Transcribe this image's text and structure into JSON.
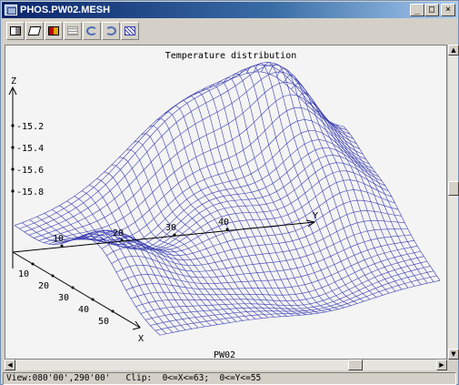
{
  "window": {
    "title": "PHOS.PW02.MESH"
  },
  "window_buttons": {
    "minimize": "_",
    "maximize": "□",
    "close": "×"
  },
  "toolbar": {
    "buttons": [
      {
        "icon": "layout-icon"
      },
      {
        "icon": "edit-icon"
      },
      {
        "icon": "color-palette-icon"
      },
      {
        "icon": "grid-icon"
      },
      {
        "icon": "rotate-left-icon"
      },
      {
        "icon": "rotate-right-icon"
      },
      {
        "icon": "mesh-icon"
      }
    ]
  },
  "plot": {
    "title": "Temperature distribution",
    "footer": "PW02",
    "z_axis_label": "Z",
    "x_axis_label": "X",
    "y_axis_label": "Y",
    "z_ticks": [
      "-15.2",
      "-15.4",
      "-15.6",
      "-15.8"
    ],
    "y_ticks": [
      "10",
      "20",
      "30",
      "40"
    ],
    "x_ticks": [
      "10",
      "20",
      "30",
      "40",
      "50"
    ],
    "mesh_color": "#3b3fb0"
  },
  "status": {
    "text": "View:080'00',290'00'   Clip:  0<=X<=63;  0<=Y<=55"
  }
}
